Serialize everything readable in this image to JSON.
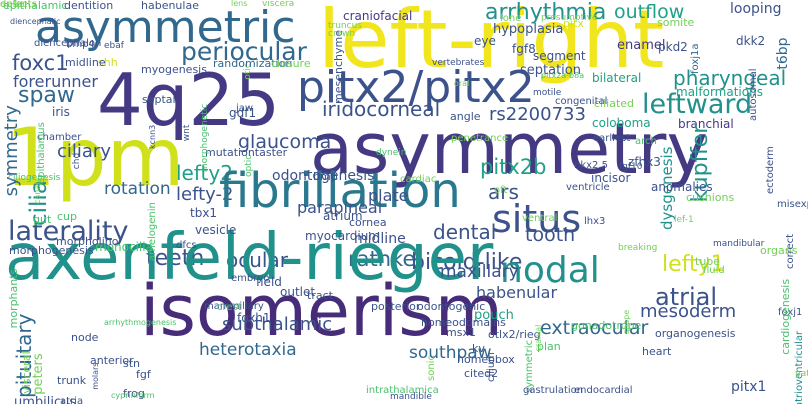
{
  "palette": {
    "dark_purple": "#443983",
    "indigo": "#3b528b",
    "blue": "#31688e",
    "steel": "#2a788e",
    "teal": "#21918c",
    "seafoam": "#1fa187",
    "green": "#2db27d",
    "lime": "#4ac16d",
    "light_green": "#73d056",
    "yellow_green": "#a0da39",
    "yellow": "#d0e11c",
    "bright_yellow": "#f1e51d",
    "deep_purple": "#472c7a"
  },
  "words": [
    {
      "text": "epithalamic",
      "color": "lime"
    },
    {
      "text": "dentition",
      "color": "indigo"
    },
    {
      "text": "habenulae",
      "color": "indigo"
    },
    {
      "text": "asymmetric",
      "color": "blue"
    },
    {
      "text": "left-right",
      "color": "bright_yellow"
    },
    {
      "text": "arrhythmia",
      "color": "teal"
    },
    {
      "text": "outflow",
      "color": "seafoam"
    },
    {
      "text": "looping",
      "color": "indigo"
    },
    {
      "text": "t6bp",
      "color": "blue"
    },
    {
      "text": "lens",
      "color": "light_green"
    },
    {
      "text": "viscera",
      "color": "light_green"
    },
    {
      "text": "craniofacial",
      "color": "dark_purple"
    },
    {
      "text": "lone",
      "color": "light_green"
    },
    {
      "text": "presumptive",
      "color": "light_green"
    },
    {
      "text": "somite",
      "color": "light_green"
    },
    {
      "text": "foxj1a",
      "color": "blue"
    },
    {
      "text": "pitx",
      "color": "yellow"
    },
    {
      "text": "hypoplasia",
      "color": "indigo"
    },
    {
      "text": "eye",
      "color": "indigo"
    },
    {
      "text": "enamel",
      "color": "dark_purple"
    },
    {
      "text": "pkd2",
      "color": "indigo"
    },
    {
      "text": "dkk2",
      "color": "indigo"
    },
    {
      "text": "periocular",
      "color": "blue"
    },
    {
      "text": "foxc1",
      "color": "indigo"
    },
    {
      "text": "forerunner",
      "color": "indigo"
    },
    {
      "text": "4q25",
      "color": "dark_purple"
    },
    {
      "text": "pitx2/pitx2",
      "color": "indigo"
    },
    {
      "text": "fgf8",
      "color": "indigo"
    },
    {
      "text": "segment",
      "color": "indigo"
    },
    {
      "text": "pharyngeal",
      "color": "teal"
    },
    {
      "text": "leftward",
      "color": "teal"
    },
    {
      "text": "spaw",
      "color": "blue"
    },
    {
      "text": "randomization",
      "color": "blue"
    },
    {
      "text": "closure",
      "color": "light_green"
    },
    {
      "text": "bilateral",
      "color": "seafoam"
    },
    {
      "text": "malformations",
      "color": "seafoam"
    },
    {
      "text": "septation",
      "color": "indigo"
    },
    {
      "text": "ciliated",
      "color": "light_green"
    },
    {
      "text": "iridocorneal",
      "color": "indigo"
    },
    {
      "text": "rs2200733",
      "color": "indigo"
    },
    {
      "text": "asymmetry",
      "color": "dark_purple"
    },
    {
      "text": "1pm",
      "color": "yellow"
    },
    {
      "text": "glaucoma",
      "color": "indigo"
    },
    {
      "text": "branchial",
      "color": "dark_purple"
    },
    {
      "text": "gdf1",
      "color": "indigo"
    },
    {
      "text": "angle",
      "color": "indigo"
    },
    {
      "text": "coloboma",
      "color": "seafoam"
    },
    {
      "text": "symmetry",
      "color": "blue"
    },
    {
      "text": "lefty2",
      "color": "seafoam"
    },
    {
      "text": "lefty-2",
      "color": "indigo"
    },
    {
      "text": "pitx2b",
      "color": "seafoam"
    },
    {
      "text": "kupffer",
      "color": "teal"
    },
    {
      "text": "fibrillation",
      "color": "steel"
    },
    {
      "text": "ars",
      "color": "indigo"
    },
    {
      "text": "dysgenesis",
      "color": "teal"
    },
    {
      "text": "laterality",
      "color": "indigo"
    },
    {
      "text": "rotation",
      "color": "blue"
    },
    {
      "text": "plate",
      "color": "indigo"
    },
    {
      "text": "situs",
      "color": "indigo"
    },
    {
      "text": "parapineal",
      "color": "indigo"
    },
    {
      "text": "cilia",
      "color": "teal"
    },
    {
      "text": "dental",
      "color": "indigo"
    },
    {
      "text": "tooth",
      "color": "indigo"
    },
    {
      "text": "zfhx3",
      "color": "indigo"
    },
    {
      "text": "incisor",
      "color": "indigo"
    },
    {
      "text": "anomalies",
      "color": "indigo"
    },
    {
      "text": "teeth",
      "color": "indigo"
    },
    {
      "text": "rathke",
      "color": "blue"
    },
    {
      "text": "bicoid-like",
      "color": "indigo"
    },
    {
      "text": "ocular",
      "color": "indigo"
    },
    {
      "text": "midline",
      "color": "indigo"
    },
    {
      "text": "nodal",
      "color": "teal"
    },
    {
      "text": "lefty1",
      "color": "yellow"
    },
    {
      "text": "atrial",
      "color": "indigo"
    },
    {
      "text": "axenfeld-rieger",
      "color": "teal"
    },
    {
      "text": "isomerism",
      "color": "deep_purple"
    },
    {
      "text": "heterotaxia",
      "color": "blue"
    },
    {
      "text": "southpaw",
      "color": "blue"
    },
    {
      "text": "extraocular",
      "color": "blue"
    },
    {
      "text": "subthalamic",
      "color": "indigo"
    },
    {
      "text": "habenular",
      "color": "indigo"
    },
    {
      "text": "mesoderm",
      "color": "indigo"
    },
    {
      "text": "pitx1",
      "color": "indigo"
    },
    {
      "text": "pituitary",
      "color": "blue"
    },
    {
      "text": "umbilicus",
      "color": "indigo"
    },
    {
      "text": "morphogenesis",
      "color": "indigo"
    },
    {
      "text": "monocilia",
      "color": "lime"
    },
    {
      "text": "myocardium",
      "color": "indigo"
    },
    {
      "text": "cornea",
      "color": "indigo"
    },
    {
      "text": "maxillary",
      "color": "indigo"
    },
    {
      "text": "pouch",
      "color": "seafoam"
    },
    {
      "text": "ciliary",
      "color": "indigo"
    },
    {
      "text": "iris",
      "color": "indigo"
    },
    {
      "text": "chamber",
      "color": "indigo"
    },
    {
      "text": "epithalamus",
      "color": "lime"
    },
    {
      "text": "odontogenesis",
      "color": "indigo"
    },
    {
      "text": "atrium",
      "color": "indigo"
    },
    {
      "text": "vesicle",
      "color": "indigo"
    },
    {
      "text": "tbx1",
      "color": "indigo"
    },
    {
      "text": "mutationtaster",
      "color": "indigo"
    },
    {
      "text": "dfcs",
      "color": "indigo"
    },
    {
      "text": "field",
      "color": "indigo"
    },
    {
      "text": "foxh1",
      "color": "indigo"
    },
    {
      "text": "shh",
      "color": "yellow"
    },
    {
      "text": "midline",
      "color": "indigo"
    },
    {
      "text": "diencephalon",
      "color": "indigo"
    },
    {
      "text": "bmp4",
      "color": "indigo"
    },
    {
      "text": "ebaf",
      "color": "indigo"
    },
    {
      "text": "myogenesis",
      "color": "indigo"
    },
    {
      "text": "septal",
      "color": "indigo"
    },
    {
      "text": "jaw",
      "color": "indigo"
    },
    {
      "text": "kcnn3",
      "color": "indigo"
    },
    {
      "text": "cup",
      "color": "lime"
    },
    {
      "text": "gut",
      "color": "lime"
    },
    {
      "text": "morpholino",
      "color": "indigo"
    },
    {
      "text": "arch",
      "color": "lime"
    },
    {
      "text": "nkx2.5",
      "color": "indigo"
    },
    {
      "text": "ectoderm",
      "color": "indigo"
    },
    {
      "text": "congenital",
      "color": "indigo"
    },
    {
      "text": "motile",
      "color": "indigo"
    },
    {
      "text": "autosomal",
      "color": "indigo"
    },
    {
      "text": "vertebrates",
      "color": "indigo"
    },
    {
      "text": "mesenchyme",
      "color": "indigo"
    },
    {
      "text": "truncus",
      "color": "light_green"
    },
    {
      "text": "crown",
      "color": "light_green"
    },
    {
      "text": "otic",
      "color": "light_green"
    },
    {
      "text": "oral",
      "color": "light_green"
    },
    {
      "text": "oft",
      "color": "light_green"
    },
    {
      "text": "bmp",
      "color": "indigo"
    },
    {
      "text": "cardiac",
      "color": "light_green"
    },
    {
      "text": "cushions",
      "color": "light_green"
    },
    {
      "text": "ventricle",
      "color": "indigo"
    },
    {
      "text": "fgf10",
      "color": "indigo"
    },
    {
      "text": "lef-1",
      "color": "light_green"
    },
    {
      "text": "earliest",
      "color": "indigo"
    },
    {
      "text": "ventral",
      "color": "light_green"
    },
    {
      "text": "lhx3",
      "color": "indigo"
    },
    {
      "text": "tube",
      "color": "light_green"
    },
    {
      "text": "breaking",
      "color": "light_green"
    },
    {
      "text": "mandibular",
      "color": "indigo"
    },
    {
      "text": "misexpression",
      "color": "indigo"
    },
    {
      "text": "organs",
      "color": "light_green"
    },
    {
      "text": "foxj1",
      "color": "indigo"
    },
    {
      "text": "correct",
      "color": "indigo"
    },
    {
      "text": "atrioventricular",
      "color": "teal"
    },
    {
      "text": "cardiogenesis",
      "color": "lime"
    },
    {
      "text": "organogenesis",
      "color": "indigo"
    },
    {
      "text": "heart",
      "color": "indigo"
    },
    {
      "text": "tract",
      "color": "indigo"
    },
    {
      "text": "homeodomains",
      "color": "indigo"
    },
    {
      "text": "odontogenic",
      "color": "indigo"
    },
    {
      "text": "posterior",
      "color": "indigo"
    },
    {
      "text": "outlet",
      "color": "indigo"
    },
    {
      "text": "otlx2/rieg",
      "color": "indigo"
    },
    {
      "text": "msx1",
      "color": "indigo"
    },
    {
      "text": "symmetric",
      "color": "lime"
    },
    {
      "text": "plan",
      "color": "lime"
    },
    {
      "text": "gonadotrope",
      "color": "lime"
    },
    {
      "text": "homeobox",
      "color": "indigo"
    },
    {
      "text": "cited2",
      "color": "indigo"
    },
    {
      "text": "kv",
      "color": "indigo"
    },
    {
      "text": "cilium",
      "color": "indigo"
    },
    {
      "text": "gastrulation",
      "color": "indigo"
    },
    {
      "text": "intrathalamica",
      "color": "lime"
    },
    {
      "text": "mandible",
      "color": "indigo"
    },
    {
      "text": "endocardial",
      "color": "indigo"
    },
    {
      "text": "cranial",
      "color": "light_green"
    },
    {
      "text": "sonic",
      "color": "light_green"
    },
    {
      "text": "mammillary",
      "color": "indigo"
    },
    {
      "text": "crest",
      "color": "lime"
    },
    {
      "text": "node",
      "color": "indigo"
    },
    {
      "text": "anterior",
      "color": "indigo"
    },
    {
      "text": "stn",
      "color": "indigo"
    },
    {
      "text": "fgf",
      "color": "indigo"
    },
    {
      "text": "frog",
      "color": "indigo"
    },
    {
      "text": "trunk",
      "color": "indigo"
    },
    {
      "text": "molars",
      "color": "indigo"
    },
    {
      "text": "atria",
      "color": "indigo"
    },
    {
      "text": "cyprinform",
      "color": "lime"
    },
    {
      "text": "peters",
      "color": "light_green"
    },
    {
      "text": "visceral",
      "color": "light_green"
    },
    {
      "text": "morphants",
      "color": "lime"
    },
    {
      "text": "diencephalic",
      "color": "indigo"
    },
    {
      "text": "ciliogenesis",
      "color": "lime"
    },
    {
      "text": "canal",
      "color": "light_green"
    },
    {
      "text": "wnt",
      "color": "indigo"
    },
    {
      "text": "optic",
      "color": "lime"
    },
    {
      "text": "morphogenetic",
      "color": "lime"
    },
    {
      "text": "dynein",
      "color": "lime"
    },
    {
      "text": "amelogenin",
      "color": "lime"
    },
    {
      "text": "chd",
      "color": "indigo"
    },
    {
      "text": "pitx2a-b8a",
      "color": "lime"
    },
    {
      "text": "arrhythmogenesis",
      "color": "lime"
    },
    {
      "text": "embryo",
      "color": "indigo"
    },
    {
      "text": "penetrance",
      "color": "light_green"
    },
    {
      "text": "shape",
      "color": "light_green"
    },
    {
      "text": "fluid",
      "color": "light_green"
    },
    {
      "text": "patterning",
      "color": "light_green"
    },
    {
      "text": "ep1c",
      "color": "light_green"
    },
    {
      "text": "defects",
      "color": "light_green"
    }
  ]
}
